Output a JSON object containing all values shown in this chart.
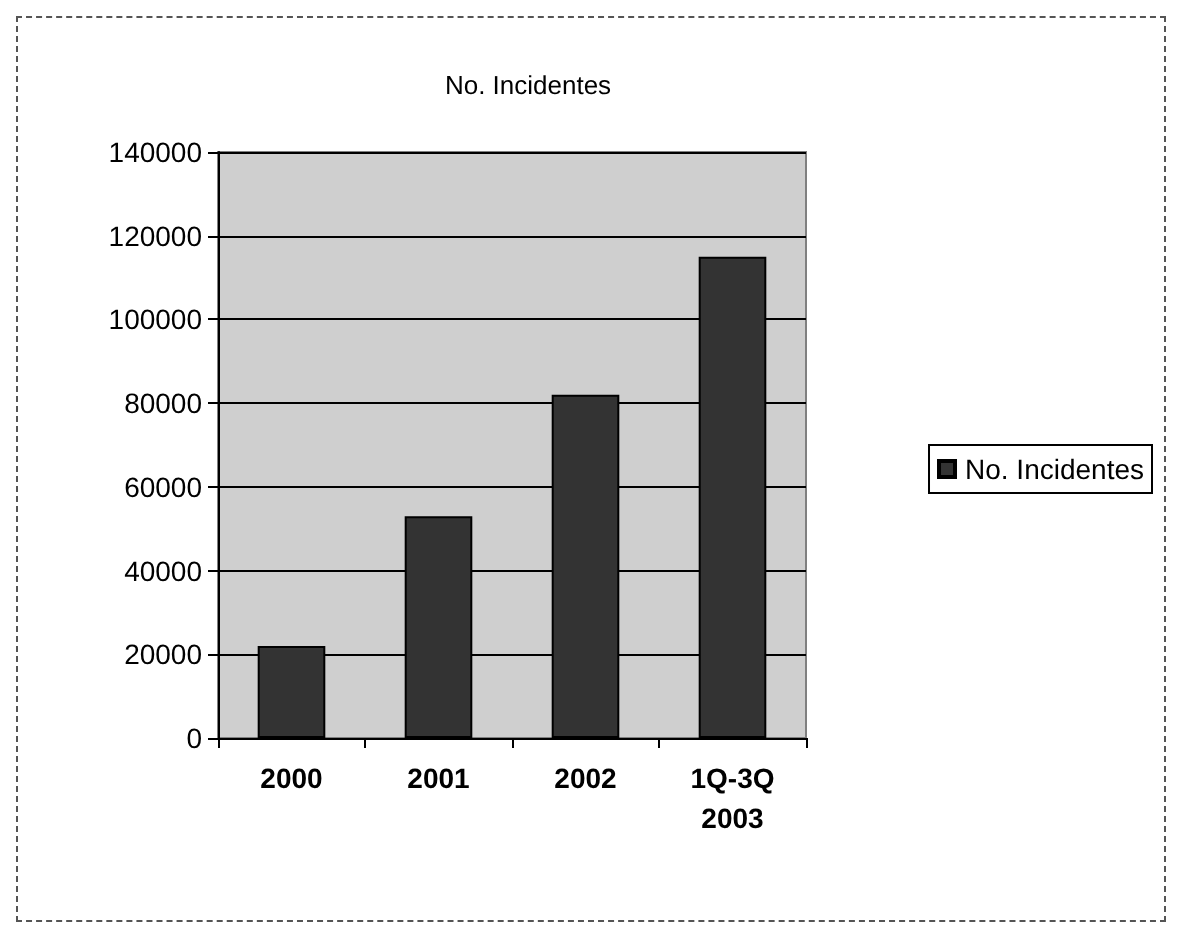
{
  "chart_data": {
    "type": "bar",
    "title": "No. Incidentes",
    "categories": [
      "2000",
      "2001",
      "2002",
      "1Q-3Q\n2003"
    ],
    "series": [
      {
        "name": "No. Incidentes",
        "color": "#333333",
        "values": [
          22000,
          53000,
          82000,
          115000
        ]
      }
    ],
    "ylim": [
      0,
      140000
    ],
    "yticks": [
      0,
      20000,
      40000,
      60000,
      80000,
      100000,
      120000,
      140000
    ],
    "grid": "y",
    "legend": "right"
  }
}
